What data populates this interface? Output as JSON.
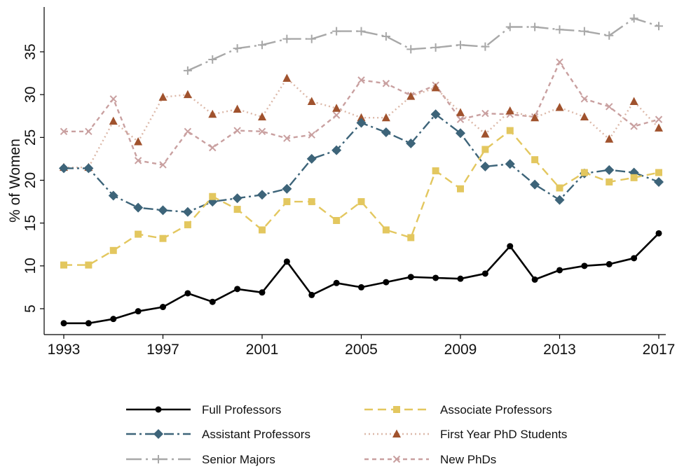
{
  "chart_data": {
    "type": "line",
    "title": "",
    "xlabel": "",
    "ylabel": "% of Women",
    "xlim": [
      1993,
      2017
    ],
    "ylim": [
      3,
      39
    ],
    "x_ticks": [
      1993,
      1997,
      2001,
      2005,
      2009,
      2013,
      2017
    ],
    "y_ticks": [
      5,
      10,
      15,
      20,
      25,
      30,
      35
    ],
    "grid": false,
    "legend": "bottom",
    "x": [
      1993,
      1994,
      1995,
      1996,
      1997,
      1998,
      1999,
      2000,
      2001,
      2002,
      2003,
      2004,
      2005,
      2006,
      2007,
      2008,
      2009,
      2010,
      2011,
      2012,
      2013,
      2014,
      2015,
      2016,
      2017
    ],
    "series": [
      {
        "name": "Full Professors",
        "color": "#000000",
        "marker": "circle",
        "dash": "solid",
        "values": [
          3.3,
          3.3,
          3.8,
          4.7,
          5.2,
          6.8,
          5.8,
          7.3,
          6.9,
          10.5,
          6.6,
          8.0,
          7.5,
          8.1,
          8.7,
          8.6,
          8.5,
          9.1,
          12.3,
          8.4,
          9.5,
          10.0,
          10.2,
          10.9,
          13.8
        ]
      },
      {
        "name": "Associate Professors",
        "color": "#e3c75f",
        "marker": "square",
        "dash": "dashed",
        "values": [
          10.1,
          10.1,
          11.8,
          13.7,
          13.2,
          14.8,
          18.1,
          16.6,
          14.2,
          17.5,
          17.5,
          15.3,
          17.5,
          14.2,
          13.3,
          21.1,
          19.0,
          23.6,
          25.8,
          22.4,
          19.1,
          20.9,
          19.8,
          20.3,
          20.9
        ]
      },
      {
        "name": "Assistant Professors",
        "color": "#3d6479",
        "marker": "diamond",
        "dash": "dashdot",
        "values": [
          21.4,
          21.4,
          18.2,
          16.8,
          16.5,
          16.3,
          17.5,
          17.9,
          18.3,
          19.0,
          22.5,
          23.5,
          26.7,
          25.6,
          24.3,
          27.7,
          25.5,
          21.6,
          21.9,
          19.5,
          17.7,
          20.8,
          21.2,
          20.9,
          19.8
        ]
      },
      {
        "name": "First Year PhD Students",
        "color": "#a0522d",
        "line_color": "#dcb8a8",
        "marker": "triangle",
        "dash": "dotted",
        "values": [
          21.5,
          21.5,
          26.9,
          24.5,
          29.7,
          30.0,
          27.7,
          28.3,
          27.4,
          31.9,
          29.2,
          28.4,
          27.3,
          27.3,
          29.8,
          30.8,
          27.9,
          25.4,
          28.1,
          27.3,
          28.5,
          27.4,
          24.8,
          29.2,
          26.1
        ]
      },
      {
        "name": "Senior Majors",
        "color": "#a8a8a8",
        "marker": "plus",
        "dash": "longdashdot",
        "values": [
          null,
          null,
          null,
          null,
          null,
          32.8,
          34.1,
          35.4,
          35.8,
          36.5,
          36.5,
          37.4,
          37.4,
          36.8,
          35.3,
          35.5,
          35.8,
          35.6,
          37.9,
          37.9,
          37.6,
          37.4,
          36.9,
          38.9,
          38.0
        ]
      },
      {
        "name": "New PhDs",
        "color": "#c9a0a0",
        "marker": "x",
        "dash": "shortdash",
        "values": [
          25.7,
          25.7,
          29.5,
          22.3,
          21.8,
          25.7,
          23.8,
          25.8,
          25.7,
          24.9,
          25.3,
          27.6,
          31.7,
          31.3,
          29.9,
          31.1,
          27.1,
          27.8,
          27.7,
          27.4,
          33.8,
          29.5,
          28.6,
          26.3,
          27.1
        ]
      }
    ]
  }
}
